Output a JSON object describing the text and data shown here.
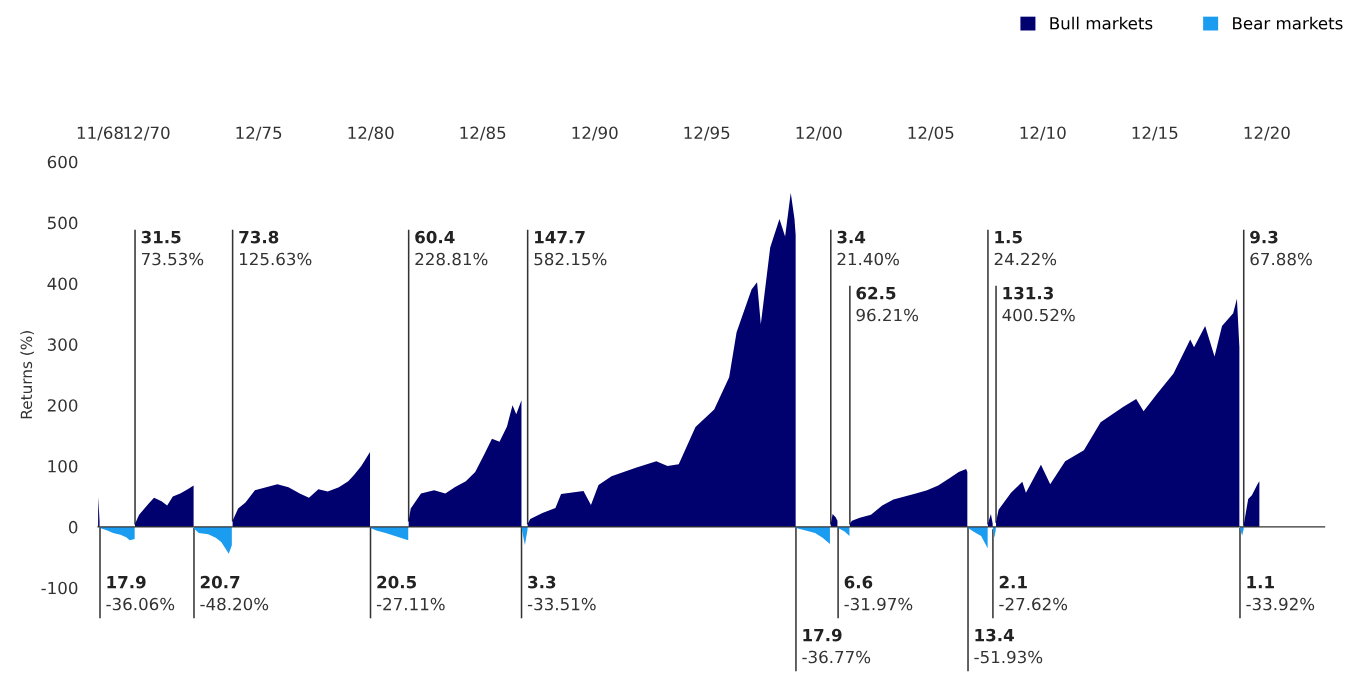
{
  "chart_data": {
    "type": "area",
    "ylabel": "Returns (%)",
    "xlim": [
      "1968-09-28",
      "2023-07-01"
    ],
    "ylim": [
      -100,
      600
    ],
    "xticks": [
      {
        "value": "1968-11-01",
        "label": "11/68"
      },
      {
        "value": "1970-12-01",
        "label": "12/70"
      },
      {
        "value": "1975-12-01",
        "label": "12/75"
      },
      {
        "value": "1980-12-01",
        "label": "12/80"
      },
      {
        "value": "1985-12-01",
        "label": "12/85"
      },
      {
        "value": "1990-12-01",
        "label": "12/90"
      },
      {
        "value": "1995-12-01",
        "label": "12/95"
      },
      {
        "value": "2000-12-01",
        "label": "12/00"
      },
      {
        "value": "2005-12-01",
        "label": "12/05"
      },
      {
        "value": "2010-12-01",
        "label": "12/10"
      },
      {
        "value": "2015-12-01",
        "label": "12/15"
      },
      {
        "value": "2020-12-01",
        "label": "12/20"
      }
    ],
    "yticks": [
      -100,
      0,
      100,
      200,
      300,
      400,
      500,
      600
    ],
    "legend": "top right",
    "series": [
      {
        "name": "Bull markets",
        "color": "#00006e",
        "x": [
          "1968-10-01",
          "1968-10-25",
          "1968-11-01",
          "1970-05-26",
          "1970-08-01",
          "1971-01-01",
          "1971-04-01",
          "1971-08-01",
          "1971-11-01",
          "1972-02-01",
          "1972-06-01",
          "1972-10-01",
          "1973-01-05",
          "1973-01-11",
          "1974-10-03",
          "1975-01-01",
          "1975-05-01",
          "1975-10-01",
          "1976-04-01",
          "1976-10-01",
          "1977-04-01",
          "1977-10-01",
          "1978-03-01",
          "1978-08-01",
          "1979-01-01",
          "1979-07-01",
          "1979-12-01",
          "1980-03-01",
          "1980-07-01",
          "1980-11-20",
          "1980-11-28",
          "1982-08-12",
          "1982-09-15",
          "1983-03-01",
          "1983-10-01",
          "1984-04-01",
          "1984-09-01",
          "1985-03-01",
          "1985-08-01",
          "1986-01-01",
          "1986-05-01",
          "1986-09-01",
          "1987-01-01",
          "1987-04-01",
          "1987-06-01",
          "1987-08-25",
          "1987-08-26",
          "1987-12-04",
          "1988-01-15",
          "1988-08-01",
          "1989-03-01",
          "1989-06-01",
          "1990-06-01",
          "1990-10-01",
          "1991-02-01",
          "1991-09-01",
          "1992-10-01",
          "1993-09-01",
          "1994-03-01",
          "1994-09-01",
          "1995-06-01",
          "1996-04-01",
          "1996-12-01",
          "1997-04-01",
          "1997-12-01",
          "1998-03-01",
          "1998-05-01",
          "1998-10-01",
          "1999-03-01",
          "1999-06-01",
          "1999-09-01",
          "1999-11-01",
          "1999-11-20",
          "1999-11-25",
          "2001-06-15",
          "2001-07-15",
          "2001-09-01",
          "2001-10-01",
          "2001-10-12",
          "2002-04-22",
          "2002-05-25",
          "2002-10-01",
          "2003-04-01",
          "2003-10-01",
          "2004-04-01",
          "2004-10-01",
          "2005-04-01",
          "2005-10-01",
          "2006-04-01",
          "2006-10-01",
          "2007-03-01",
          "2007-07-01",
          "2007-07-20",
          "2007-07-31",
          "2008-06-20",
          "2008-08-07",
          "2008-09-05",
          "2008-09-09",
          "2008-10-30",
          "2008-12-10",
          "2009-07-01",
          "2010-01-01",
          "2010-03-01",
          "2010-11-01",
          "2011-04-01",
          "2011-12-01",
          "2012-10-01",
          "2013-07-01",
          "2014-07-01",
          "2015-02-01",
          "2015-06-01",
          "2016-01-01",
          "2016-10-01",
          "2017-07-01",
          "2017-09-01",
          "2018-03-01",
          "2018-08-01",
          "2018-12-01",
          "2019-06-01",
          "2019-08-01",
          "2019-09-10",
          "2019-09-20",
          "2019-11-20",
          "2019-12-10",
          "2020-02-01",
          "2020-04-01",
          "2020-07-01",
          "2020-08-01"
        ],
        "values": [
          50,
          10,
          null,
          5,
          20,
          38,
          48,
          42,
          35,
          50,
          55,
          62,
          68,
          null,
          10,
          30,
          40,
          60,
          65,
          70,
          65,
          55,
          48,
          62,
          58,
          65,
          75,
          85,
          100,
          123,
          null,
          10,
          30,
          55,
          60,
          55,
          65,
          75,
          90,
          120,
          145,
          140,
          165,
          200,
          185,
          208,
          null,
          5,
          13,
          23,
          31,
          54,
          59,
          36,
          69,
          83,
          97,
          108,
          100,
          103,
          164,
          193,
          246,
          320,
          390,
          402,
          333,
          459,
          506,
          477,
          549,
          506,
          480,
          null,
          5,
          21,
          16,
          10,
          null,
          5,
          10,
          15,
          20,
          35,
          45,
          50,
          55,
          60,
          68,
          80,
          90,
          95,
          90,
          null,
          5,
          21,
          5,
          null,
          8,
          28,
          56,
          74,
          56,
          102,
          70,
          108,
          126,
          172,
          197,
          210,
          190,
          218,
          252,
          308,
          295,
          330,
          280,
          330,
          351,
          375,
          295,
          null,
          3,
          15,
          46,
          52,
          70,
          75
        ]
      },
      {
        "name": "Bear markets",
        "color": "#1a9cf0",
        "x": [
          "1968-11-01",
          "1969-03-01",
          "1969-06-01",
          "1969-10-01",
          "1970-01-01",
          "1970-03-01",
          "1970-05-20",
          "1970-05-26",
          "1973-01-11",
          "1973-04-01",
          "1973-09-01",
          "1974-01-01",
          "1974-04-01",
          "1974-08-01",
          "1974-09-20",
          "1974-10-03",
          "1980-11-28",
          "1981-03-01",
          "1981-08-01",
          "1982-01-01",
          "1982-08-05",
          "1982-08-12",
          "1987-08-26",
          "1987-10-19",
          "1987-12-01",
          "1987-12-04",
          "1999-11-25",
          "2000-05-01",
          "2000-10-01",
          "2001-02-01",
          "2001-06-01",
          "2001-06-15",
          "2001-10-12",
          "2002-02-01",
          "2002-04-15",
          "2002-04-22",
          "2007-07-31",
          "2007-11-01",
          "2008-03-01",
          "2008-06-15",
          "2008-06-20",
          "2008-09-09",
          "2008-10-01",
          "2008-10-25",
          "2008-10-30",
          "2019-09-20",
          "2019-10-25",
          "2019-11-18"
        ],
        "values": [
          -2,
          -6,
          -10,
          -13,
          -17,
          -22,
          -20,
          null,
          -3,
          -10,
          -12,
          -18,
          -25,
          -44,
          -30,
          null,
          -2,
          -6,
          -10,
          -15,
          -22,
          null,
          -1,
          -30,
          -5,
          null,
          -2,
          -6,
          -10,
          -18,
          -28,
          null,
          -2,
          -8,
          -15,
          null,
          -2,
          -8,
          -15,
          -35,
          null,
          -5,
          -18,
          -5,
          null,
          -3,
          -14,
          -4
        ]
      }
    ],
    "annotations": [
      {
        "text": "17.9\n-36.06%",
        "x": "1968-11-01",
        "y": -2
      },
      {
        "text": "31.5\n73.53%",
        "x": "1970-05-26",
        "y": 5
      },
      {
        "text": "20.7\n-48.20%",
        "x": "1973-01-11",
        "y": -3
      },
      {
        "text": "73.8\n125.63%",
        "x": "1974-10-03",
        "y": 10
      },
      {
        "text": "20.5\n-27.11%",
        "x": "1980-11-28",
        "y": -2
      },
      {
        "text": "60.4\n228.81%",
        "x": "1982-08-12",
        "y": 10
      },
      {
        "text": "3.3\n-33.51%",
        "x": "1987-08-26",
        "y": -1
      },
      {
        "text": "147.7\n582.15%",
        "x": "1987-12-04",
        "y": 5
      },
      {
        "text": "17.9\n-36.77%",
        "x": "1999-11-25",
        "y": -2
      },
      {
        "text": "3.4\n21.40%",
        "x": "2001-06-15",
        "y": 5
      },
      {
        "text": "6.6\n-31.97%",
        "x": "2001-10-12",
        "y": -2
      },
      {
        "text": "62.5\n96.21%",
        "x": "2002-04-22",
        "y": 5
      },
      {
        "text": "13.4\n-51.93%",
        "x": "2007-07-31",
        "y": -2
      },
      {
        "text": "1.5\n24.22%",
        "x": "2008-06-20",
        "y": 5
      },
      {
        "text": "2.1\n-27.62%",
        "x": "2008-09-09",
        "y": -5
      },
      {
        "text": "131.3\n400.52%",
        "x": "2008-10-30",
        "y": 8
      },
      {
        "text": "1.1\n-33.92%",
        "x": "2019-09-20",
        "y": -3
      },
      {
        "text": "9.3\n67.88%",
        "x": "2019-11-20",
        "y": 3
      }
    ]
  }
}
